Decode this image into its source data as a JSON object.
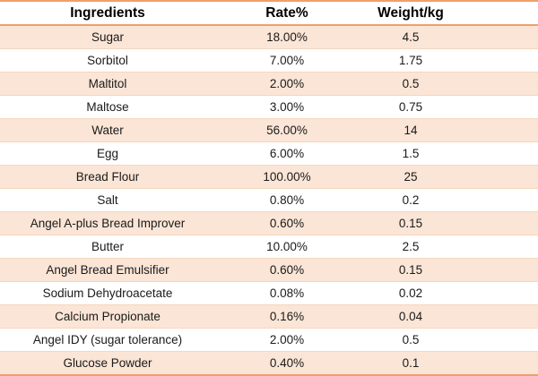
{
  "colors": {
    "accent_border": "#EFA06B",
    "stripe_fill": "#FBE5D6",
    "stripe_edge": "#F6D6BE",
    "header_text": "#000000",
    "body_text": "#1A1A1A"
  },
  "table": {
    "headers": [
      "Ingredients",
      "Rate%",
      "Weight/kg"
    ],
    "rows": [
      {
        "ingredient": "Sugar",
        "rate": "18.00%",
        "weight": "4.5"
      },
      {
        "ingredient": "Sorbitol",
        "rate": "7.00%",
        "weight": "1.75"
      },
      {
        "ingredient": "Maltitol",
        "rate": "2.00%",
        "weight": "0.5"
      },
      {
        "ingredient": "Maltose",
        "rate": "3.00%",
        "weight": "0.75"
      },
      {
        "ingredient": "Water",
        "rate": "56.00%",
        "weight": "14"
      },
      {
        "ingredient": "Egg",
        "rate": "6.00%",
        "weight": "1.5"
      },
      {
        "ingredient": "Bread Flour",
        "rate": "100.00%",
        "weight": "25"
      },
      {
        "ingredient": "Salt",
        "rate": "0.80%",
        "weight": "0.2"
      },
      {
        "ingredient": "Angel A-plus Bread Improver",
        "rate": "0.60%",
        "weight": "0.15"
      },
      {
        "ingredient": "Butter",
        "rate": "10.00%",
        "weight": "2.5"
      },
      {
        "ingredient": "Angel Bread Emulsifier",
        "rate": "0.60%",
        "weight": "0.15"
      },
      {
        "ingredient": "Sodium Dehydroacetate",
        "rate": "0.08%",
        "weight": "0.02"
      },
      {
        "ingredient": "Calcium Propionate",
        "rate": "0.16%",
        "weight": "0.04"
      },
      {
        "ingredient": "Angel IDY (sugar tolerance)",
        "rate": "2.00%",
        "weight": "0.5"
      },
      {
        "ingredient": "Glucose Powder",
        "rate": "0.40%",
        "weight": "0.1"
      }
    ]
  }
}
